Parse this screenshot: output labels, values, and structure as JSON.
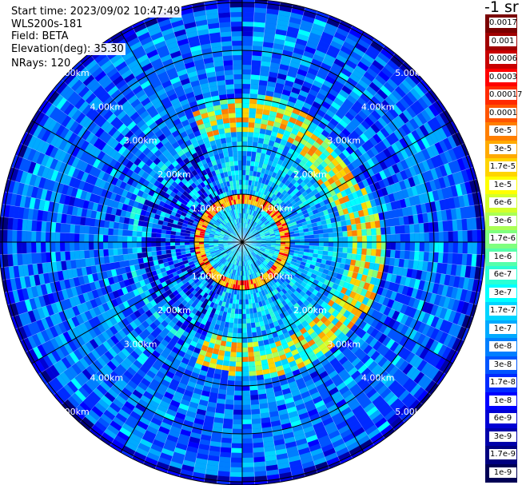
{
  "header": {
    "start_time": "Start time: 2023/09/02 10:47:49",
    "device": "WLS200s-181",
    "field": "Field: BETA",
    "elevation": "Elevation(deg): 35.30",
    "nrays": "NRays: 120"
  },
  "chart_data": {
    "type": "heatmap",
    "projection": "polar-ppi",
    "rays": 120,
    "field": "BETA",
    "unit": "-1 sr",
    "ring_labels": [
      "1.00km",
      "2.00km",
      "3.00km",
      "4.00km",
      "5.00km"
    ],
    "ring_distances_km": [
      1,
      2,
      3,
      4,
      5
    ],
    "max_range_km": 5.1,
    "spokes_deg": [
      0,
      30,
      60,
      90,
      120,
      150,
      180,
      210,
      240,
      270,
      300,
      330
    ],
    "colorbar": {
      "labels": [
        "0.0017",
        "0.001",
        "0.0006",
        "0.0003",
        "0.00017",
        "0.0001",
        "6e-5",
        "3e-5",
        "1.7e-5",
        "1e-5",
        "6e-6",
        "3e-6",
        "1.7e-6",
        "1e-6",
        "6e-7",
        "3e-7",
        "1.7e-7",
        "1e-7",
        "6e-8",
        "3e-8",
        "1.7e-8",
        "1e-8",
        "6e-9",
        "3e-9",
        "1.7e-9",
        "1e-9"
      ],
      "colors": [
        "#7a0000",
        "#a00000",
        "#c80000",
        "#ff0000",
        "#ff2a00",
        "#ff5500",
        "#ff7f00",
        "#ffaa00",
        "#ffd400",
        "#ffff00",
        "#d4ff2a",
        "#aaff55",
        "#7fff7f",
        "#55ffaa",
        "#2affd4",
        "#00ffff",
        "#00d4ff",
        "#00aaff",
        "#007fff",
        "#0055ff",
        "#002aff",
        "#0000ff",
        "#0000d4",
        "#0000aa",
        "#00007f",
        "#000055"
      ]
    },
    "aerosol_layer": {
      "inner_ring_km": [
        0.8,
        1.0
      ],
      "outer_ring_km": [
        2.2,
        2.9
      ],
      "value": "3e-5"
    }
  }
}
